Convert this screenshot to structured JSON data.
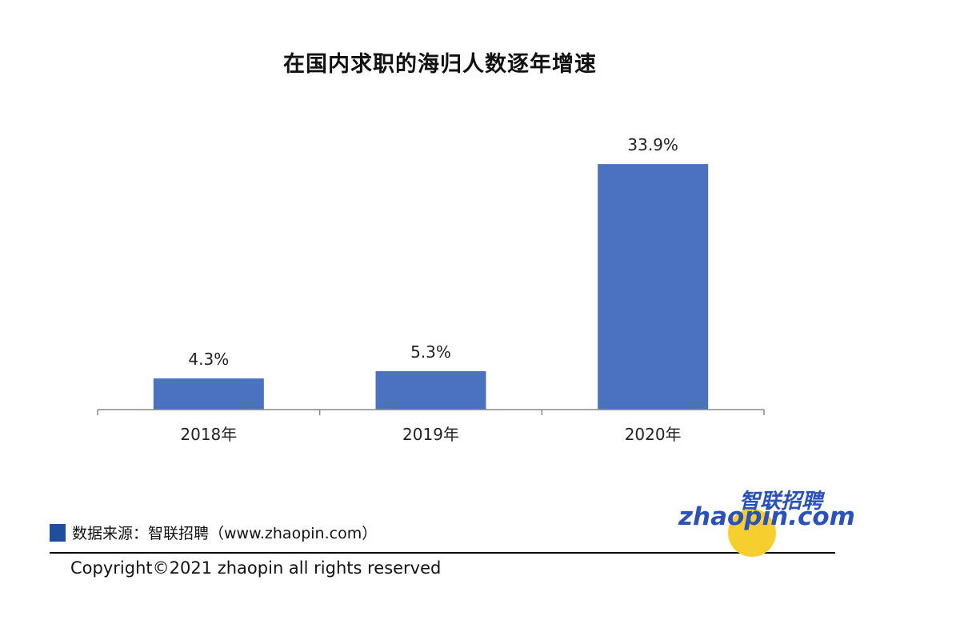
{
  "chart_data": {
    "type": "bar",
    "title": "在国内求职的海归人数逐年增速",
    "categories": [
      "2018年",
      "2019年",
      "2020年"
    ],
    "values": [
      4.3,
      5.3,
      33.9
    ],
    "data_labels": [
      "4.3%",
      "5.3%",
      "33.9%"
    ],
    "ylim": [
      0,
      38
    ],
    "bar_color": "#4a72c0",
    "grid": false,
    "legend": "none"
  },
  "footer": {
    "source_text": "数据来源：智联招聘（www.zhaopin.com）",
    "copyright": "Copyright©2021 zhaopin all rights reserved",
    "logo_cn": "智联招聘",
    "logo_en": "zhaopin.com",
    "marker_color": "#1f4e9c"
  }
}
